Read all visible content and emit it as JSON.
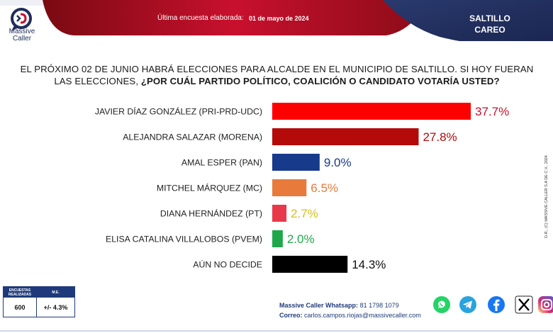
{
  "header": {
    "brand": "Massive Caller",
    "brand_line1": "Massive",
    "brand_line2": "Caller",
    "last_survey_label": "Última encuesta elaborada:",
    "last_survey_date": "01 de mayo de 2024",
    "city": "SALTILLO",
    "mode": "CAREO",
    "colors": {
      "red": "#c8102e",
      "navy": "#1f2d5a"
    }
  },
  "question": {
    "part1": "EL PRÓXIMO 02 DE JUNIO HABRÁ ELECCIONES PARA ALCALDE EN EL MUNICIPIO DE SALTILLO. SI HOY FUERAN LAS ELECCIONES, ",
    "part2": "¿POR CUÁL PARTIDO POLÍTICO, COALICIÓN O CANDIDATO VOTARÍA USTED?"
  },
  "chart_data": {
    "type": "bar",
    "orientation": "horizontal",
    "categories": [
      "JAVIER DÍAZ GONZÁLEZ (PRI-PRD-UDC)",
      "ALEJANDRA SALAZAR (MORENA)",
      "AMAL ESPER (PAN)",
      "MITCHEL MÁRQUEZ (MC)",
      "DIANA HERNÁNDEZ (PT)",
      "ELISA CATALINA VILLALOBOS (PVEM)",
      "AÚN NO DECIDE"
    ],
    "values": [
      37.7,
      27.8,
      9.0,
      6.5,
      2.7,
      2.0,
      14.3
    ],
    "labels": [
      "37.7%",
      "27.8%",
      "9.0%",
      "6.5%",
      "2.7%",
      "2.0%",
      "14.3%"
    ],
    "bar_colors": [
      "#ff0000",
      "#b50a0a",
      "#173a8a",
      "#e87b3b",
      "#e8394a",
      "#1fa84a",
      "#000000"
    ],
    "label_colors": [
      "#c8102e",
      "#b50a0a",
      "#173a8a",
      "#e87b3b",
      "#d6c21a",
      "#1fa84a",
      "#111111"
    ],
    "xlim": [
      0,
      37.7
    ]
  },
  "copyright": "D.R., (C) MASSIVE CALLER S.A DE C.V., 2024",
  "stats": {
    "col1_header": "ENCUESTAS REALIZADAS",
    "col2_header": "M.E.",
    "col1_value": "600",
    "col2_value": "+/- 4.3%"
  },
  "contact": {
    "whatsapp_label": "Massive Caller Whatsapp:",
    "whatsapp_number": "81 1798 1079",
    "email_label": "Correo:",
    "email": "carlos.campos.riojas@massivecaller.com"
  },
  "social": [
    "whatsapp-icon",
    "telegram-icon",
    "facebook-icon",
    "x-icon",
    "instagram-icon"
  ]
}
